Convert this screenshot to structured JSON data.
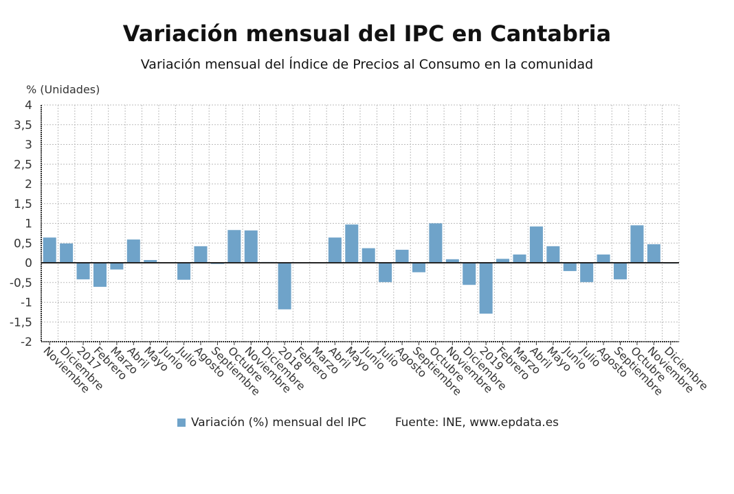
{
  "title": "Variación mensual del IPC en Cantabria",
  "subtitle": "Variación mensual del Índice de Precios al Consumo en la comunidad",
  "legend": {
    "label": "Variación (%) mensual del IPC",
    "source": "Fuente: INE, www.epdata.es"
  },
  "chart_data": {
    "type": "bar",
    "title": "Variación mensual del IPC en Cantabria",
    "ylabel": "% (Unidades)",
    "ylim": [
      -2,
      4
    ],
    "yticks": [
      "-2",
      "-1,5",
      "-1",
      "-0,5",
      "0",
      "0,5",
      "1",
      "1,5",
      "2",
      "2,5",
      "3",
      "3,5",
      "4"
    ],
    "grid": true,
    "legend_position": "bottom",
    "color": "#6fa3c9",
    "categories": [
      "Noviembre",
      "Diciembre",
      "2017",
      "Febrero",
      "Marzo",
      "Abril",
      "Mayo",
      "Junio",
      "Julio",
      "Agosto",
      "Septiembre",
      "Octubre",
      "Noviembre",
      "Diciembre",
      "2018",
      "Febrero",
      "Marzo",
      "Abril",
      "Mayo",
      "Junio",
      "Julio",
      "Agosto",
      "Septiembre",
      "Octubre",
      "Noviembre",
      "Diciembre",
      "2019",
      "Febrero",
      "Marzo",
      "Abril",
      "Mayo",
      "Junio",
      "Julio",
      "Agosto",
      "Septiembre",
      "Octubre",
      "Noviembre",
      "Diciembre"
    ],
    "series": [
      {
        "name": "Variación (%) mensual del IPC",
        "values": [
          0.64,
          0.49,
          -0.42,
          -0.61,
          -0.17,
          0.59,
          0.07,
          0.0,
          -0.43,
          0.42,
          -0.03,
          0.83,
          0.82,
          0.02,
          -1.18,
          0.01,
          0.0,
          0.64,
          0.97,
          0.37,
          -0.49,
          0.33,
          -0.24,
          1.0,
          0.09,
          -0.56,
          -1.29,
          0.1,
          0.21,
          0.92,
          0.42,
          -0.21,
          -0.49,
          0.21,
          -0.42,
          0.95,
          0.47,
          -0.02
        ]
      }
    ]
  }
}
